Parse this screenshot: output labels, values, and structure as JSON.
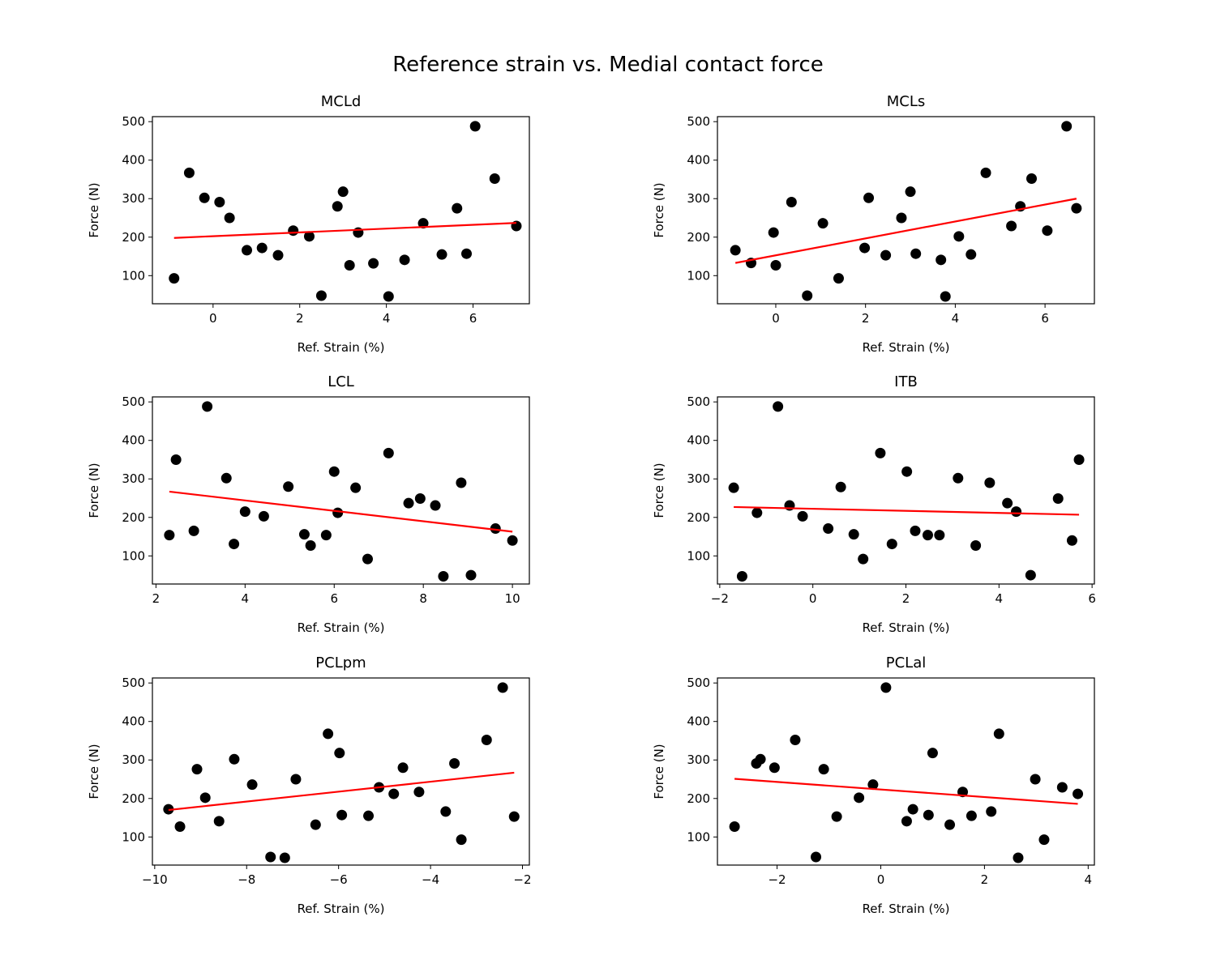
{
  "figure": {
    "title": "Reference strain vs. Medial contact force"
  },
  "chart_data": [
    {
      "type": "scatter",
      "title": "MCLd",
      "xlabel": "Ref. Strain (%)",
      "ylabel": "Force (N)",
      "xlim": [
        -1.4,
        7.3
      ],
      "ylim": [
        27,
        513
      ],
      "xticks": [
        0,
        2,
        4,
        6
      ],
      "yticks": [
        100,
        200,
        300,
        400,
        500
      ],
      "grid": false,
      "marker_color": "#000000",
      "fit_color": "#ff0000",
      "points": [
        [
          -0.9,
          93
        ],
        [
          -0.55,
          367
        ],
        [
          -0.2,
          302
        ],
        [
          0.15,
          291
        ],
        [
          0.38,
          250
        ],
        [
          0.78,
          166
        ],
        [
          1.13,
          172
        ],
        [
          1.5,
          153
        ],
        [
          1.85,
          217
        ],
        [
          2.22,
          202
        ],
        [
          2.5,
          48
        ],
        [
          2.87,
          280
        ],
        [
          3.0,
          318
        ],
        [
          3.15,
          127
        ],
        [
          3.35,
          212
        ],
        [
          3.7,
          132
        ],
        [
          4.05,
          46
        ],
        [
          4.42,
          141
        ],
        [
          4.85,
          236
        ],
        [
          5.28,
          155
        ],
        [
          5.63,
          275
        ],
        [
          5.85,
          157
        ],
        [
          6.05,
          488
        ],
        [
          6.5,
          352
        ],
        [
          7.0,
          229
        ]
      ],
      "fit": {
        "x": [
          -0.9,
          7.0
        ],
        "y": [
          198,
          237
        ]
      }
    },
    {
      "type": "scatter",
      "title": "MCLs",
      "xlabel": "Ref. Strain (%)",
      "ylabel": "Force (N)",
      "xlim": [
        -1.3,
        7.1
      ],
      "ylim": [
        27,
        513
      ],
      "xticks": [
        0,
        2,
        4,
        6
      ],
      "yticks": [
        100,
        200,
        300,
        400,
        500
      ],
      "grid": false,
      "marker_color": "#000000",
      "fit_color": "#ff0000",
      "points": [
        [
          -0.9,
          166
        ],
        [
          -0.55,
          133
        ],
        [
          -0.05,
          212
        ],
        [
          0.0,
          127
        ],
        [
          0.35,
          291
        ],
        [
          0.7,
          48
        ],
        [
          1.05,
          236
        ],
        [
          1.4,
          93
        ],
        [
          1.98,
          172
        ],
        [
          2.07,
          302
        ],
        [
          2.45,
          153
        ],
        [
          2.8,
          250
        ],
        [
          3.0,
          318
        ],
        [
          3.12,
          157
        ],
        [
          3.68,
          141
        ],
        [
          3.78,
          46
        ],
        [
          4.08,
          202
        ],
        [
          4.35,
          155
        ],
        [
          4.68,
          367
        ],
        [
          5.25,
          229
        ],
        [
          5.45,
          280
        ],
        [
          5.7,
          352
        ],
        [
          6.05,
          217
        ],
        [
          6.48,
          488
        ],
        [
          6.7,
          275
        ]
      ],
      "fit": {
        "x": [
          -0.9,
          6.7
        ],
        "y": [
          133,
          300
        ]
      }
    },
    {
      "type": "scatter",
      "title": "LCL",
      "xlabel": "Ref. Strain (%)",
      "ylabel": "Force (N)",
      "xlim": [
        1.92,
        10.38
      ],
      "ylim": [
        27,
        513
      ],
      "xticks": [
        2,
        4,
        6,
        8,
        10
      ],
      "yticks": [
        100,
        200,
        300,
        400,
        500
      ],
      "grid": false,
      "marker_color": "#000000",
      "fit_color": "#ff0000",
      "points": [
        [
          2.3,
          154
        ],
        [
          2.45,
          350
        ],
        [
          2.85,
          165
        ],
        [
          3.15,
          488
        ],
        [
          3.58,
          302
        ],
        [
          3.75,
          131
        ],
        [
          4.0,
          215
        ],
        [
          4.42,
          203
        ],
        [
          4.97,
          280
        ],
        [
          5.33,
          156
        ],
        [
          5.47,
          127
        ],
        [
          5.82,
          154
        ],
        [
          6.0,
          319
        ],
        [
          6.08,
          212
        ],
        [
          6.48,
          277
        ],
        [
          6.75,
          92
        ],
        [
          7.22,
          367
        ],
        [
          7.67,
          237
        ],
        [
          7.93,
          249
        ],
        [
          8.27,
          231
        ],
        [
          8.45,
          47
        ],
        [
          8.85,
          290
        ],
        [
          9.07,
          50
        ],
        [
          9.62,
          171
        ],
        [
          10.0,
          140
        ]
      ],
      "fit": {
        "x": [
          2.3,
          10.0
        ],
        "y": [
          267,
          163
        ]
      }
    },
    {
      "type": "scatter",
      "title": "ITB",
      "xlabel": "Ref. Strain (%)",
      "ylabel": "Force (N)",
      "xlim": [
        -2.05,
        6.05
      ],
      "ylim": [
        27,
        513
      ],
      "xticks": [
        -2,
        0,
        2,
        4,
        6
      ],
      "yticks": [
        100,
        200,
        300,
        400,
        500
      ],
      "grid": false,
      "marker_color": "#000000",
      "fit_color": "#ff0000",
      "points": [
        [
          -1.7,
          277
        ],
        [
          -1.52,
          47
        ],
        [
          -1.2,
          212
        ],
        [
          -0.75,
          488
        ],
        [
          -0.5,
          231
        ],
        [
          -0.22,
          203
        ],
        [
          0.33,
          171
        ],
        [
          0.6,
          279
        ],
        [
          0.88,
          156
        ],
        [
          1.08,
          92
        ],
        [
          1.45,
          367
        ],
        [
          1.7,
          131
        ],
        [
          2.02,
          319
        ],
        [
          2.2,
          165
        ],
        [
          2.47,
          154
        ],
        [
          2.72,
          154
        ],
        [
          3.12,
          302
        ],
        [
          3.5,
          127
        ],
        [
          3.8,
          290
        ],
        [
          4.18,
          237
        ],
        [
          4.37,
          215
        ],
        [
          4.68,
          50
        ],
        [
          5.27,
          249
        ],
        [
          5.57,
          140
        ],
        [
          5.72,
          350
        ]
      ],
      "fit": {
        "x": [
          -1.7,
          5.72
        ],
        "y": [
          227,
          207
        ]
      }
    },
    {
      "type": "scatter",
      "title": "PCLpm",
      "xlabel": "Ref. Strain (%)",
      "ylabel": "Force (N)",
      "xlim": [
        -10.05,
        -1.85
      ],
      "ylim": [
        27,
        513
      ],
      "xticks": [
        -10,
        -8,
        -6,
        -4,
        -2
      ],
      "yticks": [
        100,
        200,
        300,
        400,
        500
      ],
      "grid": false,
      "marker_color": "#000000",
      "fit_color": "#ff0000",
      "points": [
        [
          -9.7,
          172
        ],
        [
          -9.45,
          127
        ],
        [
          -9.08,
          276
        ],
        [
          -8.9,
          202
        ],
        [
          -8.6,
          141
        ],
        [
          -8.27,
          302
        ],
        [
          -7.88,
          236
        ],
        [
          -7.48,
          48
        ],
        [
          -7.17,
          46
        ],
        [
          -6.93,
          250
        ],
        [
          -6.5,
          132
        ],
        [
          -6.23,
          368
        ],
        [
          -5.98,
          318
        ],
        [
          -5.93,
          157
        ],
        [
          -5.35,
          155
        ],
        [
          -5.12,
          229
        ],
        [
          -4.8,
          212
        ],
        [
          -4.6,
          280
        ],
        [
          -4.25,
          217
        ],
        [
          -3.67,
          166
        ],
        [
          -3.48,
          291
        ],
        [
          -3.33,
          93
        ],
        [
          -2.78,
          352
        ],
        [
          -2.43,
          488
        ],
        [
          -2.18,
          153
        ]
      ],
      "fit": {
        "x": [
          -9.7,
          -2.18
        ],
        "y": [
          170,
          267
        ]
      }
    },
    {
      "type": "scatter",
      "title": "PCLal",
      "xlabel": "Ref. Strain (%)",
      "ylabel": "Force (N)",
      "xlim": [
        -3.15,
        4.12
      ],
      "ylim": [
        27,
        513
      ],
      "xticks": [
        -2,
        0,
        2,
        4
      ],
      "yticks": [
        100,
        200,
        300,
        400,
        500
      ],
      "grid": false,
      "marker_color": "#000000",
      "fit_color": "#ff0000",
      "points": [
        [
          -2.82,
          127
        ],
        [
          -2.4,
          291
        ],
        [
          -2.32,
          302
        ],
        [
          -2.05,
          280
        ],
        [
          -1.65,
          352
        ],
        [
          -1.25,
          48
        ],
        [
          -1.1,
          276
        ],
        [
          -0.85,
          153
        ],
        [
          -0.42,
          202
        ],
        [
          -0.15,
          236
        ],
        [
          0.1,
          488
        ],
        [
          0.5,
          141
        ],
        [
          0.62,
          172
        ],
        [
          0.92,
          157
        ],
        [
          1.0,
          318
        ],
        [
          1.33,
          132
        ],
        [
          1.58,
          217
        ],
        [
          1.75,
          155
        ],
        [
          2.13,
          166
        ],
        [
          2.28,
          368
        ],
        [
          2.65,
          46
        ],
        [
          2.98,
          250
        ],
        [
          3.15,
          93
        ],
        [
          3.5,
          229
        ],
        [
          3.8,
          212
        ]
      ],
      "fit": {
        "x": [
          -2.82,
          3.8
        ],
        "y": [
          251,
          186
        ]
      }
    }
  ]
}
